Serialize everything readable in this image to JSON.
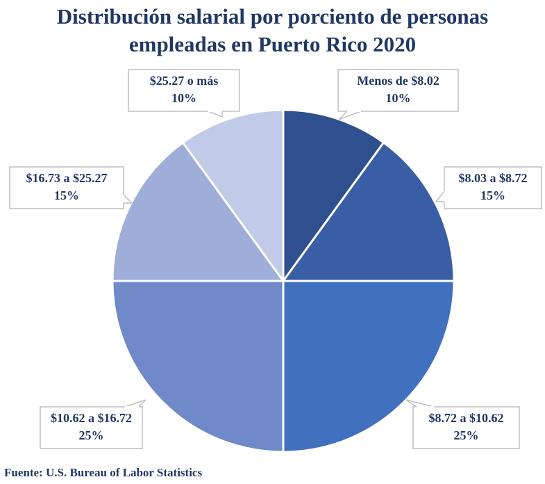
{
  "chart_data": {
    "type": "pie",
    "title": "Distribución salarial por porciento de personas empleadas en Puerto Rico 2020",
    "categories": [
      "Menos de $8.02",
      "$8.03 a $8.72",
      "$8.72 a $10.62",
      "$10.62 a $16.72",
      "$16.73 a $25.27",
      "$25.27 o más"
    ],
    "values": [
      10,
      15,
      25,
      25,
      15,
      10
    ],
    "value_labels": [
      "10%",
      "15%",
      "25%",
      "25%",
      "15%",
      "10%"
    ],
    "colors": [
      "#2f4f8f",
      "#3a5ea6",
      "#4170be",
      "#6f89c9",
      "#9eaed9",
      "#c1cae6"
    ],
    "source": "Fuente: U.S. Bureau of Labor Statistics"
  }
}
